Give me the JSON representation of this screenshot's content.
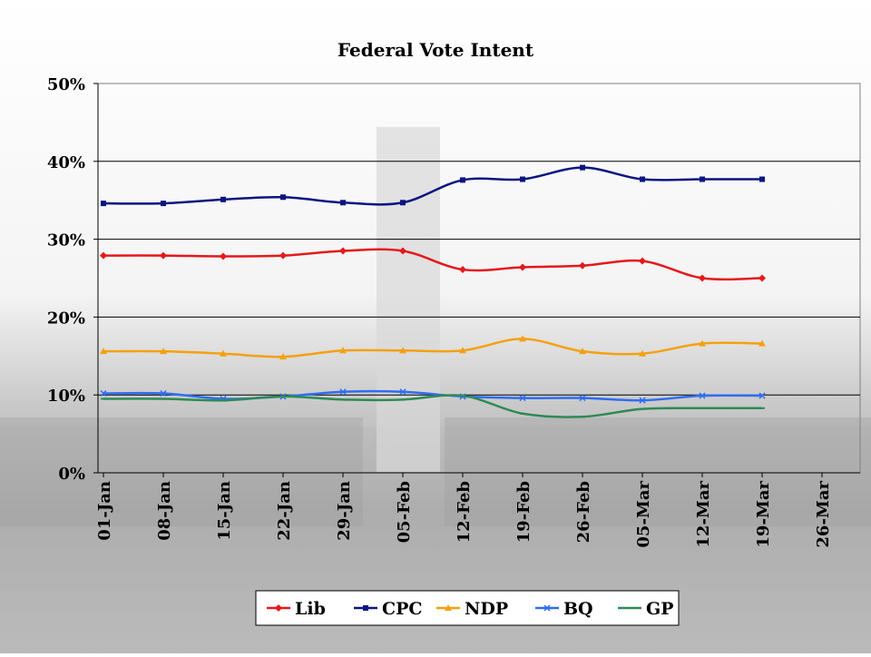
{
  "chart_data": {
    "type": "line",
    "title": "Federal Vote Intent",
    "x_ticks": [
      "01-Jan",
      "08-Jan",
      "15-Jan",
      "22-Jan",
      "29-Jan",
      "05-Feb",
      "12-Feb",
      "19-Feb",
      "26-Feb",
      "05-Mar",
      "12-Mar",
      "19-Mar",
      "26-Mar"
    ],
    "y_ticks": [
      "0%",
      "10%",
      "20%",
      "30%",
      "40%",
      "50%"
    ],
    "ylim": [
      0,
      50
    ],
    "grid": true,
    "legend_position": "bottom",
    "x": [
      "01-Jan",
      "08-Jan",
      "15-Jan",
      "22-Jan",
      "29-Jan",
      "05-Feb",
      "12-Feb",
      "19-Feb",
      "26-Feb",
      "05-Mar",
      "12-Mar",
      "19-Mar"
    ],
    "series": [
      {
        "name": "Lib",
        "color": "#e4191b",
        "marker": "diamond",
        "values": [
          27.9,
          27.9,
          27.8,
          27.9,
          28.5,
          28.5,
          26.1,
          26.4,
          26.6,
          27.2,
          25.0,
          25.0
        ]
      },
      {
        "name": "CPC",
        "color": "#0b1580",
        "marker": "square",
        "values": [
          34.6,
          34.6,
          35.1,
          35.4,
          34.7,
          34.7,
          37.6,
          37.7,
          39.2,
          37.7,
          37.7,
          37.7
        ]
      },
      {
        "name": "NDP",
        "color": "#f5a00f",
        "marker": "triangle",
        "values": [
          15.6,
          15.6,
          15.3,
          14.9,
          15.7,
          15.7,
          15.7,
          17.2,
          15.6,
          15.3,
          16.6,
          16.6
        ]
      },
      {
        "name": "BQ",
        "color": "#2f6df1",
        "marker": "x",
        "values": [
          10.2,
          10.2,
          9.5,
          9.8,
          10.4,
          10.4,
          9.8,
          9.6,
          9.6,
          9.3,
          9.9,
          9.9
        ]
      },
      {
        "name": "GP",
        "color": "#2e8a55",
        "marker": "dash",
        "values": [
          9.5,
          9.5,
          9.3,
          9.8,
          9.4,
          9.4,
          9.9,
          7.6,
          7.2,
          8.2,
          8.3,
          8.3
        ]
      }
    ]
  }
}
